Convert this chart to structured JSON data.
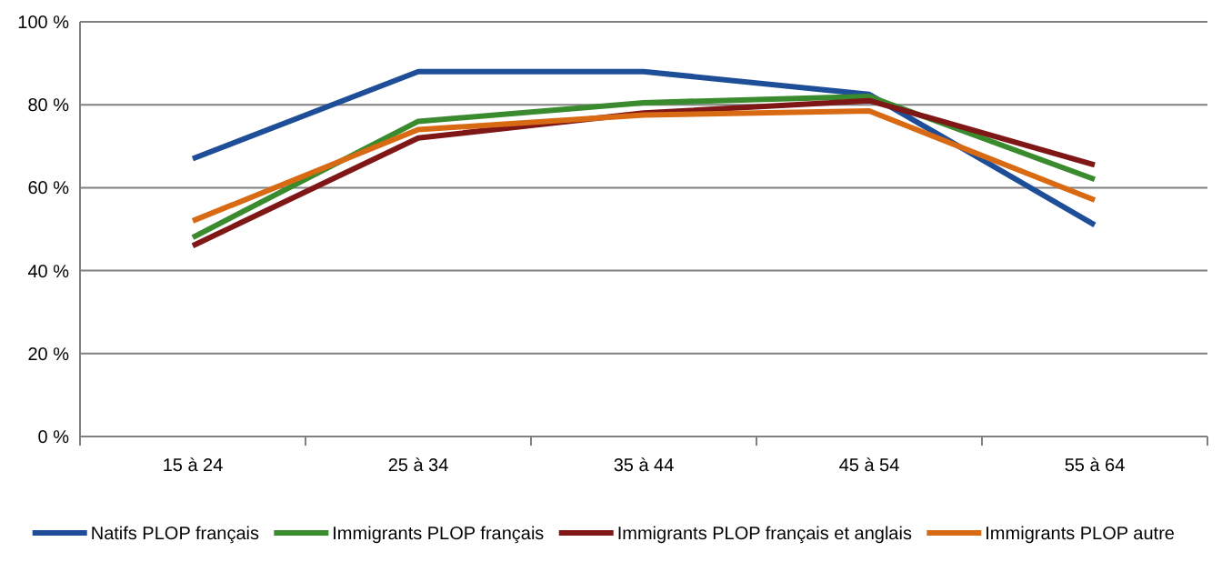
{
  "chart_data": {
    "type": "line",
    "categories": [
      "15 à 24",
      "25 à 34",
      "35 à 44",
      "45 à 54",
      "55 à 64"
    ],
    "series": [
      {
        "name": "Natifs PLOP français",
        "color": "#1f4e99",
        "values": [
          67,
          88,
          88,
          82.5,
          51
        ]
      },
      {
        "name": "Immigrants PLOP français",
        "color": "#3a8a2e",
        "values": [
          48,
          76,
          80.5,
          82,
          62
        ]
      },
      {
        "name": "Immigrants PLOP français et anglais",
        "color": "#7f1717",
        "values": [
          46,
          72,
          78,
          81,
          65.5
        ]
      },
      {
        "name": "Immigrants PLOP autre",
        "color": "#d96a14",
        "values": [
          52,
          74,
          77.5,
          78.5,
          57
        ]
      }
    ],
    "ylim": [
      0,
      100
    ],
    "yticks": [
      {
        "value": 0,
        "label": "0 %"
      },
      {
        "value": 20,
        "label": "20 %"
      },
      {
        "value": 40,
        "label": "40 %"
      },
      {
        "value": 60,
        "label": "60 %"
      },
      {
        "value": 80,
        "label": "80 %"
      },
      {
        "value": 100,
        "label": "100 %"
      }
    ],
    "grid": "y",
    "legend": "bottom",
    "marker": "none",
    "line_style": "solid"
  }
}
